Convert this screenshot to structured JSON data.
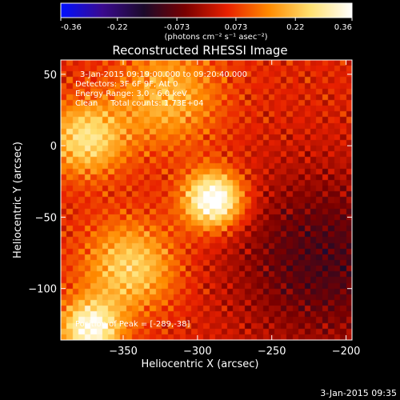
{
  "colorbar": {
    "ticks": [
      "-0.36",
      "-0.22",
      "-0.073",
      "0.073",
      "0.22",
      "0.36"
    ],
    "tick_values": [
      -0.36,
      -0.22,
      -0.073,
      0.073,
      0.22,
      0.36
    ],
    "range": [
      -0.36,
      0.36
    ],
    "units_label": "(photons cm⁻² s⁻¹ asec⁻²)",
    "colormap": [
      "#0010ff",
      "#3a0a8f",
      "#1b0a2a",
      "#7a0000",
      "#e82000",
      "#ff8a00",
      "#ffe070",
      "#ffffff"
    ]
  },
  "title": "Reconstructed RHESSI Image",
  "info": {
    "time": "3-Jan-2015 09:19:00.000 to 09:20:40.000",
    "detectors": "Detectors: 3F 6F 9F, Att 0",
    "energy": "Energy Range: 3.0 - 6.0 keV",
    "clean": "Clean     Total counts: 1.73E+04"
  },
  "peak_label": "Position of Peak = [-289,-38]",
  "footer_timestamp": "3-Jan-2015 09:35",
  "chart_data": {
    "type": "heatmap",
    "title": "Reconstructed RHESSI Image",
    "xlabel": "Heliocentric X (arcsec)",
    "ylabel": "Heliocentric Y (arcsec)",
    "xlim": [
      -392,
      -196
    ],
    "ylim": [
      -136,
      60
    ],
    "x_ticks": [
      -350,
      -300,
      -250,
      -200
    ],
    "x_tick_labels": [
      "−350",
      "−300",
      "−250",
      "−200"
    ],
    "y_ticks": [
      50,
      0,
      -50,
      -100
    ],
    "y_tick_labels": [
      "50",
      "0",
      "−50",
      "−100"
    ],
    "peak": {
      "x": -289,
      "y": -38
    },
    "value_range": [
      -0.36,
      0.36
    ],
    "sources": [
      {
        "x": -289,
        "y": -38,
        "sigma": 14,
        "amp": 0.36
      },
      {
        "x": -375,
        "y": 5,
        "sigma": 18,
        "amp": 0.22
      },
      {
        "x": -345,
        "y": -85,
        "sigma": 22,
        "amp": 0.2
      },
      {
        "x": -320,
        "y": 35,
        "sigma": 25,
        "amp": 0.16
      },
      {
        "x": -372,
        "y": -128,
        "sigma": 14,
        "amp": 0.3
      }
    ],
    "negative_region": {
      "x": -215,
      "y": -80,
      "sigma": 45,
      "amp": -0.15
    }
  }
}
